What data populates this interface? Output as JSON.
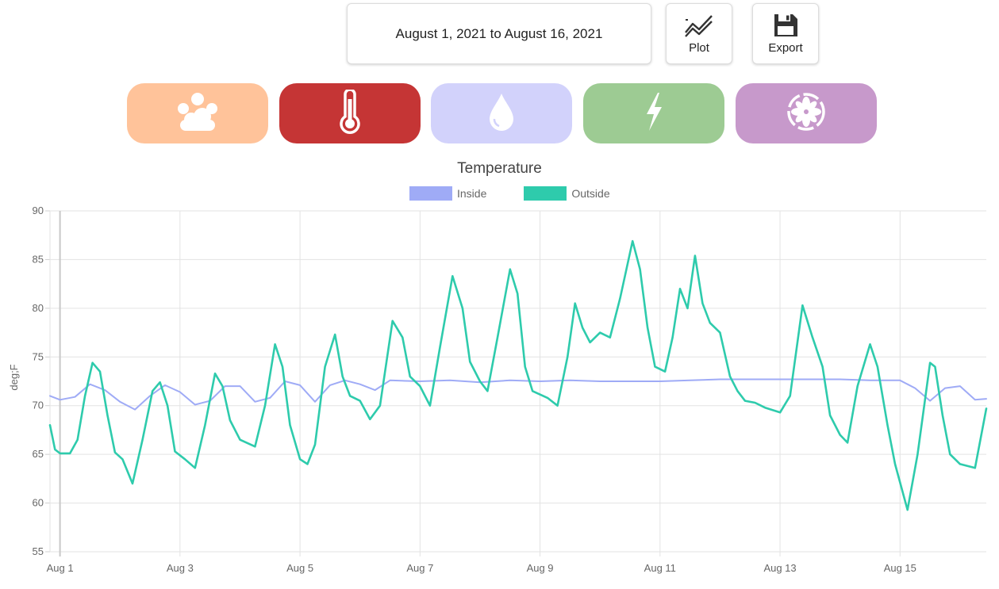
{
  "toolbar": {
    "date_range": "August 1, 2021 to August 16, 2021",
    "plot_label": "Plot",
    "export_label": "Export",
    "plot_icon": "line-chart-icon",
    "export_icon": "floppy-disk-icon"
  },
  "categories": [
    {
      "name": "weather",
      "icon": "cloud-sun-icon",
      "color": "#ffc39a",
      "selected": false
    },
    {
      "name": "temperature",
      "icon": "thermometer-icon",
      "color": "#c53535",
      "selected": true
    },
    {
      "name": "humidity",
      "icon": "water-drop-icon",
      "color": "#d2d2fb",
      "selected": false
    },
    {
      "name": "power",
      "icon": "lightning-icon",
      "color": "#9dcb93",
      "selected": false
    },
    {
      "name": "fan",
      "icon": "fan-icon",
      "color": "#c799cb",
      "selected": false
    }
  ],
  "chart_data": {
    "type": "line",
    "title": "Temperature",
    "ylabel": "deg;F",
    "xlabel": "",
    "ylim": [
      55,
      90
    ],
    "xlim": [
      "2021-07-31T20:00",
      "2021-08-16T10:30"
    ],
    "yticks": [
      55,
      60,
      65,
      70,
      75,
      80,
      85,
      90
    ],
    "xticks": [
      "Aug 1",
      "Aug 3",
      "Aug 5",
      "Aug 7",
      "Aug 9",
      "Aug 11",
      "Aug 13",
      "Aug 15"
    ],
    "grid": true,
    "legend_position": "top-center",
    "series": [
      {
        "name": "Inside",
        "color": "#9fabf6",
        "points": [
          [
            "2021-07-31T20:00",
            71.0
          ],
          [
            "2021-08-01T00:00",
            70.6
          ],
          [
            "2021-08-01T06:00",
            70.9
          ],
          [
            "2021-08-01T12:00",
            72.2
          ],
          [
            "2021-08-01T18:00",
            71.6
          ],
          [
            "2021-08-02T00:00",
            70.4
          ],
          [
            "2021-08-02T06:00",
            69.6
          ],
          [
            "2021-08-02T12:00",
            71.0
          ],
          [
            "2021-08-02T18:00",
            72.1
          ],
          [
            "2021-08-03T00:00",
            71.4
          ],
          [
            "2021-08-03T06:00",
            70.1
          ],
          [
            "2021-08-03T12:00",
            70.5
          ],
          [
            "2021-08-03T18:00",
            72.0
          ],
          [
            "2021-08-04T00:00",
            72.0
          ],
          [
            "2021-08-04T06:00",
            70.4
          ],
          [
            "2021-08-04T12:00",
            70.8
          ],
          [
            "2021-08-04T18:00",
            72.5
          ],
          [
            "2021-08-05T00:00",
            72.1
          ],
          [
            "2021-08-05T06:00",
            70.4
          ],
          [
            "2021-08-05T12:00",
            72.1
          ],
          [
            "2021-08-05T18:00",
            72.6
          ],
          [
            "2021-08-06T00:00",
            72.2
          ],
          [
            "2021-08-06T06:00",
            71.6
          ],
          [
            "2021-08-06T12:00",
            72.6
          ],
          [
            "2021-08-07T00:00",
            72.5
          ],
          [
            "2021-08-07T12:00",
            72.6
          ],
          [
            "2021-08-08T00:00",
            72.4
          ],
          [
            "2021-08-08T12:00",
            72.6
          ],
          [
            "2021-08-09T00:00",
            72.5
          ],
          [
            "2021-08-09T12:00",
            72.6
          ],
          [
            "2021-08-10T00:00",
            72.5
          ],
          [
            "2021-08-10T12:00",
            72.5
          ],
          [
            "2021-08-11T00:00",
            72.5
          ],
          [
            "2021-08-11T12:00",
            72.6
          ],
          [
            "2021-08-12T00:00",
            72.7
          ],
          [
            "2021-08-12T12:00",
            72.7
          ],
          [
            "2021-08-13T00:00",
            72.7
          ],
          [
            "2021-08-13T12:00",
            72.7
          ],
          [
            "2021-08-14T00:00",
            72.7
          ],
          [
            "2021-08-14T12:00",
            72.6
          ],
          [
            "2021-08-15T00:00",
            72.6
          ],
          [
            "2021-08-15T06:00",
            71.8
          ],
          [
            "2021-08-15T12:00",
            70.5
          ],
          [
            "2021-08-15T18:00",
            71.8
          ],
          [
            "2021-08-16T00:00",
            72.0
          ],
          [
            "2021-08-16T06:00",
            70.6
          ],
          [
            "2021-08-16T10:30",
            70.7
          ]
        ]
      },
      {
        "name": "Outside",
        "color": "#2ecbac",
        "points": [
          [
            "2021-07-31T20:00",
            68.0
          ],
          [
            "2021-07-31T22:00",
            65.5
          ],
          [
            "2021-08-01T00:00",
            65.1
          ],
          [
            "2021-08-01T04:00",
            65.1
          ],
          [
            "2021-08-01T07:00",
            66.5
          ],
          [
            "2021-08-01T10:00",
            71.0
          ],
          [
            "2021-08-01T13:00",
            74.4
          ],
          [
            "2021-08-01T16:00",
            73.5
          ],
          [
            "2021-08-01T19:00",
            69.0
          ],
          [
            "2021-08-01T22:00",
            65.2
          ],
          [
            "2021-08-02T01:00",
            64.5
          ],
          [
            "2021-08-02T05:00",
            62.0
          ],
          [
            "2021-08-02T09:00",
            66.5
          ],
          [
            "2021-08-02T13:00",
            71.5
          ],
          [
            "2021-08-02T16:00",
            72.4
          ],
          [
            "2021-08-02T19:00",
            70.0
          ],
          [
            "2021-08-02T22:00",
            65.3
          ],
          [
            "2021-08-03T02:00",
            64.5
          ],
          [
            "2021-08-03T06:00",
            63.6
          ],
          [
            "2021-08-03T10:00",
            68.0
          ],
          [
            "2021-08-03T14:00",
            73.3
          ],
          [
            "2021-08-03T17:00",
            72.0
          ],
          [
            "2021-08-03T20:00",
            68.5
          ],
          [
            "2021-08-04T00:00",
            66.5
          ],
          [
            "2021-08-04T06:00",
            65.8
          ],
          [
            "2021-08-04T10:00",
            70.0
          ],
          [
            "2021-08-04T14:00",
            76.3
          ],
          [
            "2021-08-04T17:00",
            74.0
          ],
          [
            "2021-08-04T20:00",
            68.0
          ],
          [
            "2021-08-05T00:00",
            64.5
          ],
          [
            "2021-08-05T03:00",
            64.0
          ],
          [
            "2021-08-05T06:00",
            66.0
          ],
          [
            "2021-08-05T10:00",
            74.0
          ],
          [
            "2021-08-05T14:00",
            77.3
          ],
          [
            "2021-08-05T17:00",
            73.0
          ],
          [
            "2021-08-05T20:00",
            71.0
          ],
          [
            "2021-08-06T00:00",
            70.5
          ],
          [
            "2021-08-06T04:00",
            68.6
          ],
          [
            "2021-08-06T08:00",
            70.0
          ],
          [
            "2021-08-06T13:00",
            78.7
          ],
          [
            "2021-08-06T17:00",
            77.0
          ],
          [
            "2021-08-06T20:00",
            73.0
          ],
          [
            "2021-08-07T00:00",
            72.0
          ],
          [
            "2021-08-07T04:00",
            70.0
          ],
          [
            "2021-08-07T08:00",
            76.0
          ],
          [
            "2021-08-07T13:00",
            83.3
          ],
          [
            "2021-08-07T17:00",
            80.0
          ],
          [
            "2021-08-07T20:00",
            74.5
          ],
          [
            "2021-08-08T00:00",
            72.5
          ],
          [
            "2021-08-08T03:00",
            71.5
          ],
          [
            "2021-08-08T07:00",
            77.0
          ],
          [
            "2021-08-08T12:00",
            84.0
          ],
          [
            "2021-08-08T15:00",
            81.5
          ],
          [
            "2021-08-08T18:00",
            74.0
          ],
          [
            "2021-08-08T21:00",
            71.5
          ],
          [
            "2021-08-09T03:00",
            70.8
          ],
          [
            "2021-08-09T07:00",
            70.0
          ],
          [
            "2021-08-09T11:00",
            75.0
          ],
          [
            "2021-08-09T14:00",
            80.5
          ],
          [
            "2021-08-09T17:00",
            78.0
          ],
          [
            "2021-08-09T20:00",
            76.5
          ],
          [
            "2021-08-10T00:00",
            77.5
          ],
          [
            "2021-08-10T04:00",
            77.0
          ],
          [
            "2021-08-10T08:00",
            81.0
          ],
          [
            "2021-08-10T13:00",
            86.9
          ],
          [
            "2021-08-10T16:00",
            84.0
          ],
          [
            "2021-08-10T19:00",
            78.0
          ],
          [
            "2021-08-10T22:00",
            74.0
          ],
          [
            "2021-08-11T02:00",
            73.5
          ],
          [
            "2021-08-11T05:00",
            77.0
          ],
          [
            "2021-08-11T08:00",
            82.0
          ],
          [
            "2021-08-11T11:00",
            80.0
          ],
          [
            "2021-08-11T14:00",
            85.4
          ],
          [
            "2021-08-11T17:00",
            80.5
          ],
          [
            "2021-08-11T20:00",
            78.5
          ],
          [
            "2021-08-12T00:00",
            77.5
          ],
          [
            "2021-08-12T04:00",
            73.0
          ],
          [
            "2021-08-12T07:00",
            71.5
          ],
          [
            "2021-08-12T10:00",
            70.5
          ],
          [
            "2021-08-12T14:00",
            70.3
          ],
          [
            "2021-08-12T18:00",
            69.8
          ],
          [
            "2021-08-13T00:00",
            69.3
          ],
          [
            "2021-08-13T04:00",
            71.0
          ],
          [
            "2021-08-13T09:00",
            80.3
          ],
          [
            "2021-08-13T13:00",
            77.0
          ],
          [
            "2021-08-13T17:00",
            74.0
          ],
          [
            "2021-08-13T20:00",
            69.0
          ],
          [
            "2021-08-14T00:00",
            67.0
          ],
          [
            "2021-08-14T03:00",
            66.2
          ],
          [
            "2021-08-14T07:00",
            72.0
          ],
          [
            "2021-08-14T12:00",
            76.3
          ],
          [
            "2021-08-14T15:00",
            74.0
          ],
          [
            "2021-08-14T19:00",
            68.0
          ],
          [
            "2021-08-14T22:00",
            64.0
          ],
          [
            "2021-08-15T03:00",
            59.3
          ],
          [
            "2021-08-15T07:00",
            65.0
          ],
          [
            "2021-08-15T12:00",
            74.4
          ],
          [
            "2021-08-15T14:00",
            74.0
          ],
          [
            "2021-08-15T17:00",
            69.0
          ],
          [
            "2021-08-15T20:00",
            65.0
          ],
          [
            "2021-08-16T00:00",
            64.0
          ],
          [
            "2021-08-16T06:00",
            63.6
          ],
          [
            "2021-08-16T10:30",
            69.7
          ]
        ]
      }
    ]
  }
}
